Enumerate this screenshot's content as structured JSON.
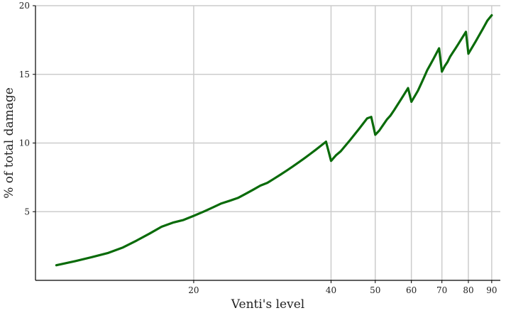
{
  "chart_data": {
    "type": "line",
    "title": "",
    "xlabel": "Venti's level",
    "ylabel": "% of total damage",
    "x_scale": "log",
    "xlim": [
      9,
      94
    ],
    "ylim": [
      0,
      20
    ],
    "grid": true,
    "line_color": "#0a6b0a",
    "x_ticks": [
      {
        "value": 20,
        "label": "20"
      },
      {
        "value": 40,
        "label": "40"
      },
      {
        "value": 50,
        "label": "50"
      },
      {
        "value": 60,
        "label": "60"
      },
      {
        "value": 70,
        "label": "70"
      },
      {
        "value": 80,
        "label": "80"
      },
      {
        "value": 90,
        "label": "90"
      }
    ],
    "y_ticks": [
      {
        "value": 5,
        "label": "5"
      },
      {
        "value": 10,
        "label": "10"
      },
      {
        "value": 15,
        "label": "15"
      },
      {
        "value": 20,
        "label": "20"
      }
    ],
    "series": [
      {
        "x": [
          10,
          11,
          12,
          13,
          14,
          15,
          16,
          17,
          18,
          19,
          20,
          21,
          22,
          23,
          24,
          25,
          26,
          27,
          28,
          29,
          30,
          31,
          32,
          33,
          34,
          35,
          36,
          37,
          38,
          39,
          40,
          41,
          42,
          43,
          44,
          45,
          46,
          47,
          48,
          49,
          50,
          51,
          52,
          53,
          54,
          55,
          56,
          57,
          58,
          59,
          60,
          61,
          62,
          63,
          64,
          65,
          66,
          67,
          68,
          69,
          70,
          71,
          72,
          73,
          74,
          75,
          76,
          77,
          78,
          79,
          80,
          81,
          82,
          83,
          84,
          85,
          86,
          87,
          88,
          89,
          90
        ],
        "y": [
          1.1,
          1.4,
          1.7,
          2.0,
          2.4,
          2.9,
          3.4,
          3.9,
          4.2,
          4.4,
          4.7,
          5.0,
          5.3,
          5.6,
          5.8,
          6.0,
          6.3,
          6.6,
          6.9,
          7.1,
          7.4,
          7.7,
          8.0,
          8.3,
          8.6,
          8.9,
          9.2,
          9.5,
          9.8,
          10.1,
          8.7,
          9.1,
          9.4,
          9.8,
          10.2,
          10.6,
          11.0,
          11.4,
          11.8,
          11.9,
          10.6,
          10.9,
          11.3,
          11.7,
          12.0,
          12.4,
          12.8,
          13.2,
          13.6,
          14.0,
          13.0,
          13.4,
          13.8,
          14.3,
          14.8,
          15.3,
          15.7,
          16.1,
          16.5,
          16.9,
          15.2,
          15.6,
          15.9,
          16.3,
          16.6,
          16.9,
          17.2,
          17.5,
          17.8,
          18.1,
          16.5,
          16.8,
          17.1,
          17.4,
          17.7,
          18.0,
          18.3,
          18.6,
          18.9,
          19.1,
          19.3
        ]
      }
    ]
  }
}
